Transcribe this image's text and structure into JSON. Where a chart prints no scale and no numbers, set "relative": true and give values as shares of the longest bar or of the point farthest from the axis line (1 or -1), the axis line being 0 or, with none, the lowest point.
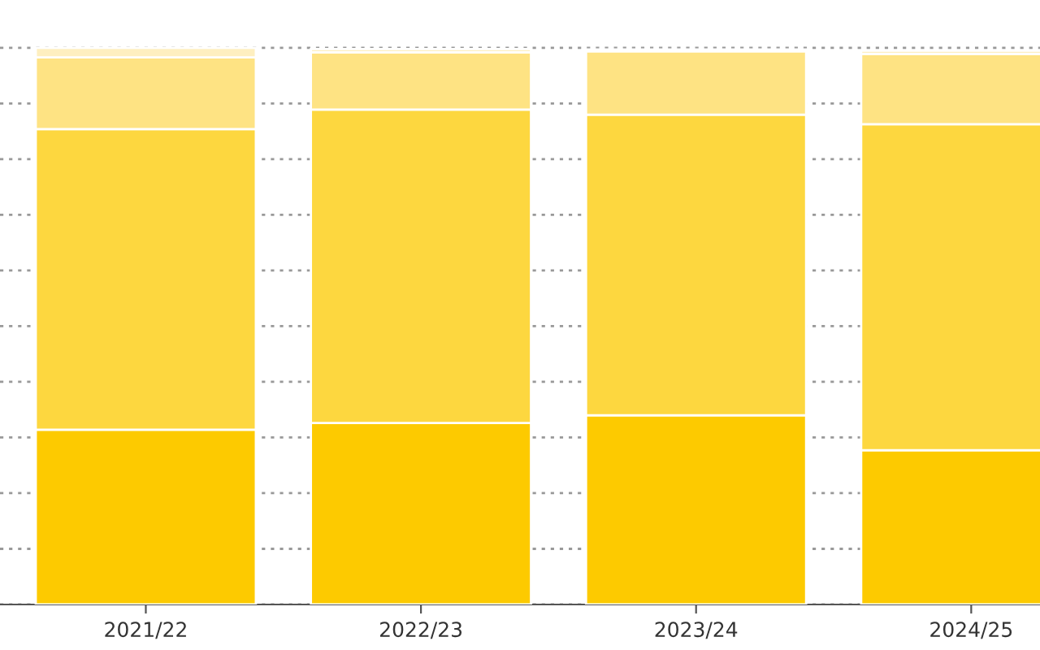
{
  "chart_data": {
    "type": "bar",
    "stacked": true,
    "relative": true,
    "grid": "y",
    "legend": false,
    "categories": [
      "2021/22",
      "2022/23",
      "2023/24",
      "2024/25"
    ],
    "series": [
      {
        "color": "#fdca00",
        "values": [
          0.314,
          0.326,
          0.34,
          0.277
        ]
      },
      {
        "color": "#fdd73f",
        "values": [
          0.54,
          0.563,
          0.54,
          0.586
        ]
      },
      {
        "color": "#fee383",
        "values": [
          0.129,
          0.103,
          0.114,
          0.126
        ]
      },
      {
        "color": "#feefc0",
        "values": [
          0.017,
          0.006,
          0.003,
          0.006
        ]
      }
    ]
  }
}
